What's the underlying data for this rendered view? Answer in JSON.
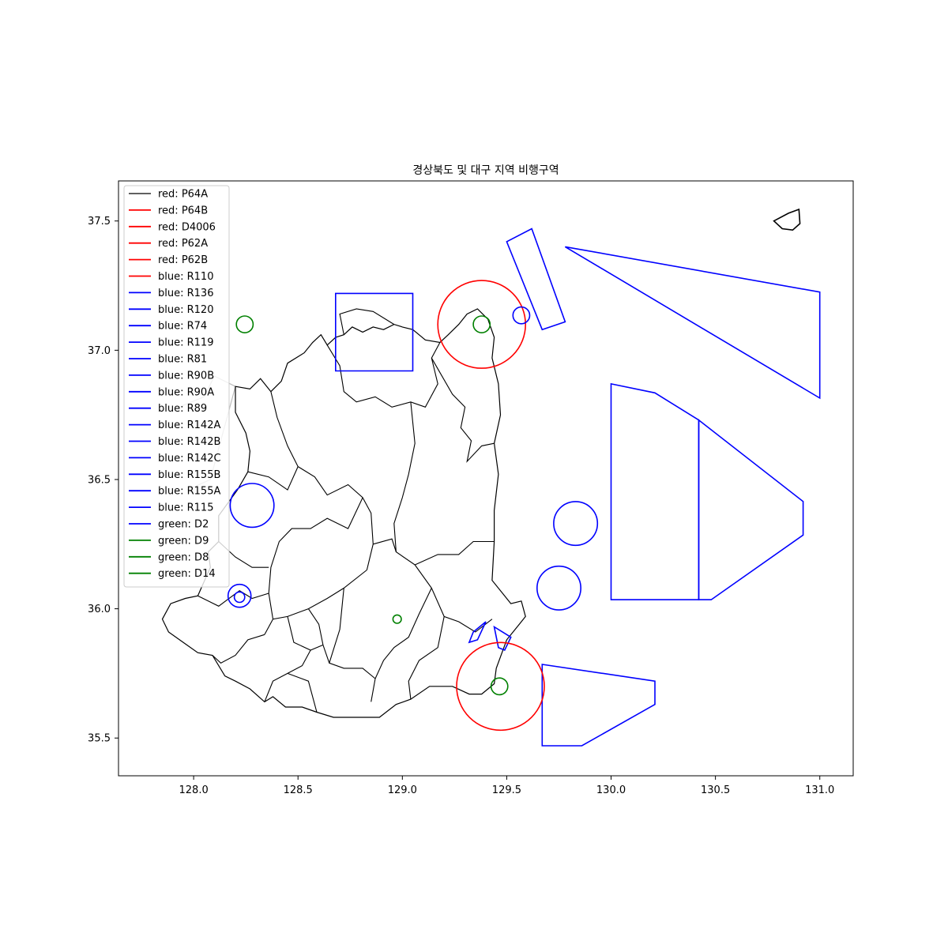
{
  "title": "경상북도 및 대구 지역 비행구역",
  "axes": {
    "xlim": [
      127.64,
      131.16
    ],
    "ylim": [
      35.354,
      37.655
    ],
    "xticks": [
      128.0,
      128.5,
      129.0,
      129.5,
      130.0,
      130.5,
      131.0
    ],
    "yticks": [
      35.5,
      36.0,
      36.5,
      37.0,
      37.5
    ],
    "xtick_labels": [
      "128.0",
      "128.5",
      "129.0",
      "129.5",
      "130.0",
      "130.5",
      "131.0"
    ],
    "ytick_labels": [
      "35.5",
      "36.0",
      "36.5",
      "37.0",
      "37.5"
    ]
  },
  "colors": {
    "red": "#ff0000",
    "blue": "#0000ff",
    "green": "#008000",
    "black": "#000000",
    "gray": "#bbbbbb"
  },
  "legend": {
    "position": "upper-left",
    "entries": [
      {
        "label": "red: P64A",
        "color": "#000000"
      },
      {
        "label": "red: P64B",
        "color": "#ff0000"
      },
      {
        "label": "red: D4006",
        "color": "#ff0000"
      },
      {
        "label": "red: P62A",
        "color": "#ff0000"
      },
      {
        "label": "red: P62B",
        "color": "#ff0000"
      },
      {
        "label": "blue: R110",
        "color": "#ff0000"
      },
      {
        "label": "blue: R136",
        "color": "#0000ff"
      },
      {
        "label": "blue: R120",
        "color": "#0000ff"
      },
      {
        "label": "blue: R74",
        "color": "#0000ff"
      },
      {
        "label": "blue: R119",
        "color": "#0000ff"
      },
      {
        "label": "blue: R81",
        "color": "#0000ff"
      },
      {
        "label": "blue: R90B",
        "color": "#0000ff"
      },
      {
        "label": "blue: R90A",
        "color": "#0000ff"
      },
      {
        "label": "blue: R89",
        "color": "#0000ff"
      },
      {
        "label": "blue: R142A",
        "color": "#0000ff"
      },
      {
        "label": "blue: R142B",
        "color": "#0000ff"
      },
      {
        "label": "blue: R142C",
        "color": "#0000ff"
      },
      {
        "label": "blue: R155B",
        "color": "#0000ff"
      },
      {
        "label": "blue: R155A",
        "color": "#0000ff"
      },
      {
        "label": "blue: R115",
        "color": "#0000ff"
      },
      {
        "label": "green: D2",
        "color": "#0000ff"
      },
      {
        "label": "green: D9",
        "color": "#008000"
      },
      {
        "label": "green: D8",
        "color": "#008000"
      },
      {
        "label": "green: D14",
        "color": "#008000"
      }
    ]
  },
  "map_data": {
    "circles": [
      {
        "color": "red",
        "center": [
          129.38,
          37.1
        ],
        "radius_deg": 0.21
      },
      {
        "color": "red",
        "center": [
          129.47,
          35.7
        ],
        "radius_deg": 0.21
      },
      {
        "color": "blue",
        "center": [
          128.28,
          36.4
        ],
        "radius_deg": 0.105
      },
      {
        "color": "blue",
        "center": [
          129.57,
          37.135
        ],
        "radius_deg": 0.04
      },
      {
        "color": "blue",
        "center": [
          129.83,
          36.33
        ],
        "radius_deg": 0.105
      },
      {
        "color": "blue",
        "center": [
          129.75,
          36.08
        ],
        "radius_deg": 0.105
      },
      {
        "color": "blue",
        "center": [
          128.22,
          36.05
        ],
        "radius_deg": 0.055
      },
      {
        "color": "blue",
        "center": [
          128.22,
          36.045
        ],
        "radius_deg": 0.025
      },
      {
        "color": "green",
        "center": [
          128.245,
          37.1
        ],
        "radius_deg": 0.04
      },
      {
        "color": "green",
        "center": [
          129.38,
          37.1
        ],
        "radius_deg": 0.04
      },
      {
        "color": "green",
        "center": [
          129.465,
          35.7
        ],
        "radius_deg": 0.04
      },
      {
        "color": "green",
        "center": [
          128.975,
          35.96
        ],
        "radius_deg": 0.02
      }
    ],
    "polygons": [
      {
        "color": "blue",
        "points": [
          [
            128.68,
            37.22
          ],
          [
            129.05,
            37.22
          ],
          [
            129.05,
            36.92
          ],
          [
            128.68,
            36.92
          ]
        ]
      },
      {
        "color": "blue",
        "points": [
          [
            129.5,
            37.42
          ],
          [
            129.62,
            37.47
          ],
          [
            129.78,
            37.11
          ],
          [
            129.67,
            37.08
          ]
        ]
      },
      {
        "color": "blue",
        "points": [
          [
            129.78,
            37.4
          ],
          [
            131.0,
            37.225
          ],
          [
            131.0,
            36.815
          ]
        ]
      },
      {
        "color": "blue",
        "points": [
          [
            130.0,
            36.87
          ],
          [
            130.21,
            36.835
          ],
          [
            130.42,
            36.73
          ],
          [
            130.42,
            36.035
          ],
          [
            130.0,
            36.035
          ]
        ]
      },
      {
        "color": "blue",
        "points": [
          [
            130.42,
            36.73
          ],
          [
            130.92,
            36.415
          ],
          [
            130.92,
            36.285
          ],
          [
            130.48,
            36.035
          ],
          [
            130.42,
            36.035
          ]
        ]
      },
      {
        "color": "blue",
        "points": [
          [
            129.67,
            35.785
          ],
          [
            130.21,
            35.72
          ],
          [
            130.21,
            35.63
          ],
          [
            129.86,
            35.47
          ],
          [
            129.67,
            35.47
          ]
        ]
      },
      {
        "color": "blue",
        "points": [
          [
            129.34,
            35.91
          ],
          [
            129.4,
            35.95
          ],
          [
            129.36,
            35.88
          ],
          [
            129.32,
            35.87
          ]
        ]
      },
      {
        "color": "blue",
        "points": [
          [
            129.44,
            35.93
          ],
          [
            129.52,
            35.89
          ],
          [
            129.49,
            35.84
          ],
          [
            129.46,
            35.85
          ]
        ]
      },
      {
        "color": "black",
        "points": [
          [
            130.78,
            37.5
          ],
          [
            130.85,
            37.53
          ],
          [
            130.9,
            37.545
          ],
          [
            130.905,
            37.49
          ],
          [
            130.87,
            37.465
          ],
          [
            130.82,
            37.47
          ]
        ]
      }
    ],
    "region_outline": [
      [
        128.2,
        36.86
      ],
      [
        128.27,
        36.85
      ],
      [
        128.32,
        36.89
      ],
      [
        128.37,
        36.84
      ],
      [
        128.42,
        36.88
      ],
      [
        128.45,
        36.95
      ],
      [
        128.53,
        36.99
      ],
      [
        128.57,
        37.03
      ],
      [
        128.61,
        37.06
      ],
      [
        128.64,
        37.02
      ],
      [
        128.68,
        37.05
      ],
      [
        128.72,
        37.06
      ],
      [
        128.76,
        37.09
      ],
      [
        128.81,
        37.07
      ],
      [
        128.86,
        37.09
      ],
      [
        128.91,
        37.08
      ],
      [
        128.96,
        37.1
      ],
      [
        129.0,
        37.09
      ],
      [
        129.05,
        37.08
      ],
      [
        129.11,
        37.04
      ],
      [
        129.18,
        37.03
      ],
      [
        129.22,
        37.06
      ],
      [
        129.27,
        37.1
      ],
      [
        129.31,
        37.14
      ],
      [
        129.36,
        37.16
      ],
      [
        129.41,
        37.12
      ],
      [
        129.44,
        37.05
      ],
      [
        129.43,
        36.97
      ],
      [
        129.46,
        36.87
      ],
      [
        129.47,
        36.75
      ],
      [
        129.44,
        36.64
      ],
      [
        129.46,
        36.52
      ],
      [
        129.44,
        36.38
      ],
      [
        129.44,
        36.26
      ],
      [
        129.43,
        36.11
      ],
      [
        129.52,
        36.02
      ],
      [
        129.57,
        36.03
      ],
      [
        129.59,
        35.97
      ],
      [
        129.56,
        35.94
      ],
      [
        129.5,
        35.88
      ],
      [
        129.45,
        35.77
      ],
      [
        129.44,
        35.71
      ],
      [
        129.38,
        35.67
      ],
      [
        129.32,
        35.67
      ],
      [
        129.24,
        35.7
      ],
      [
        129.13,
        35.7
      ],
      [
        129.04,
        35.65
      ],
      [
        128.97,
        35.63
      ],
      [
        128.89,
        35.58
      ],
      [
        128.78,
        35.58
      ],
      [
        128.67,
        35.58
      ],
      [
        128.59,
        35.6
      ],
      [
        128.52,
        35.62
      ],
      [
        128.44,
        35.62
      ],
      [
        128.38,
        35.66
      ],
      [
        128.34,
        35.64
      ],
      [
        128.27,
        35.69
      ],
      [
        128.2,
        35.72
      ],
      [
        128.15,
        35.74
      ],
      [
        128.09,
        35.82
      ],
      [
        128.02,
        35.83
      ],
      [
        127.95,
        35.87
      ],
      [
        127.88,
        35.91
      ],
      [
        127.85,
        35.96
      ],
      [
        127.89,
        36.02
      ],
      [
        127.96,
        36.04
      ],
      [
        128.02,
        36.05
      ],
      [
        128.08,
        36.16
      ],
      [
        128.07,
        36.22
      ],
      [
        128.12,
        36.26
      ],
      [
        128.12,
        36.36
      ],
      [
        128.21,
        36.46
      ],
      [
        128.26,
        36.53
      ],
      [
        128.27,
        36.61
      ],
      [
        128.25,
        36.68
      ],
      [
        128.2,
        36.76
      ],
      [
        128.2,
        36.86
      ]
    ]
  }
}
